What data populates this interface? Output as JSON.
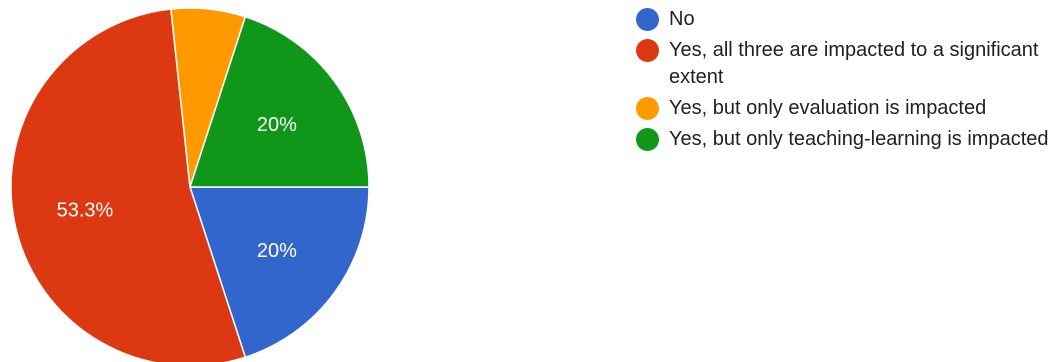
{
  "chart_data": {
    "type": "pie",
    "title": "",
    "slices": [
      {
        "label": "No",
        "value": 20,
        "color": "#3366cc",
        "display": "20%"
      },
      {
        "label": "Yes, all three are impacted to a significant extent",
        "value": 53.3,
        "color": "#dc3912",
        "display": "53.3%"
      },
      {
        "label": "Yes, but only evaluation is impacted",
        "value": 6.7,
        "color": "#ff9900",
        "display": ""
      },
      {
        "label": "Yes, but only teaching-learning is impacted",
        "value": 20,
        "color": "#109618",
        "display": "20%"
      }
    ],
    "start_angle_deg": 90,
    "direction": "clockwise",
    "legend_position": "right"
  }
}
